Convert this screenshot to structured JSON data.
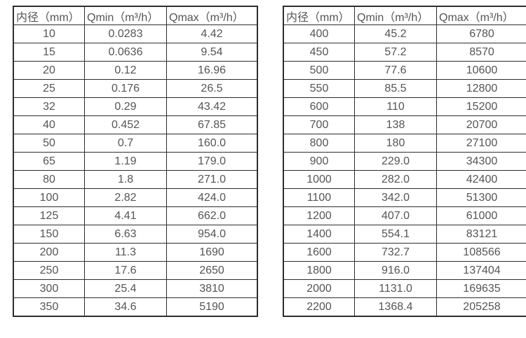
{
  "page": {
    "background": "#ffffff",
    "text_color": "#555555",
    "border_color": "#2d2d2d"
  },
  "chart_data": [
    {
      "type": "table",
      "name": "flow-range-table-small-diameters",
      "columns": [
        "内径（mm）",
        "Qmin（m³/h）",
        "Qmax（m³/h）"
      ],
      "rows": [
        [
          "10",
          "0.0283",
          "4.42"
        ],
        [
          "15",
          "0.0636",
          "9.54"
        ],
        [
          "20",
          "0.12",
          "16.96"
        ],
        [
          "25",
          "0.176",
          "26.5"
        ],
        [
          "32",
          "0.29",
          "43.42"
        ],
        [
          "40",
          "0.452",
          "67.85"
        ],
        [
          "50",
          "0.7",
          "160.0"
        ],
        [
          "65",
          "1.19",
          "179.0"
        ],
        [
          "80",
          "1.8",
          "271.0"
        ],
        [
          "100",
          "2.82",
          "424.0"
        ],
        [
          "125",
          "4.41",
          "662.0"
        ],
        [
          "150",
          "6.63",
          "954.0"
        ],
        [
          "200",
          "11.3",
          "1690"
        ],
        [
          "250",
          "17.6",
          "2650"
        ],
        [
          "300",
          "25.4",
          "3810"
        ],
        [
          "350",
          "34.6",
          "5190"
        ]
      ]
    },
    {
      "type": "table",
      "name": "flow-range-table-large-diameters",
      "columns": [
        "内径（mm）",
        "Qmin（m³/h）",
        "Qmax（m³/h）"
      ],
      "rows": [
        [
          "400",
          "45.2",
          "6780"
        ],
        [
          "450",
          "57.2",
          "8570"
        ],
        [
          "500",
          "77.6",
          "10600"
        ],
        [
          "550",
          "85.5",
          "12800"
        ],
        [
          "600",
          "110",
          "15200"
        ],
        [
          "700",
          "138",
          "20700"
        ],
        [
          "800",
          "180",
          "27100"
        ],
        [
          "900",
          "229.0",
          "34300"
        ],
        [
          "1000",
          "282.0",
          "42400"
        ],
        [
          "1100",
          "342.0",
          "51300"
        ],
        [
          "1200",
          "407.0",
          "61000"
        ],
        [
          "1400",
          "554.1",
          "83121"
        ],
        [
          "1600",
          "732.7",
          "108566"
        ],
        [
          "1800",
          "916.0",
          "137404"
        ],
        [
          "2000",
          "1131.0",
          "169635"
        ],
        [
          "2200",
          "1368.4",
          "205258"
        ]
      ]
    }
  ]
}
